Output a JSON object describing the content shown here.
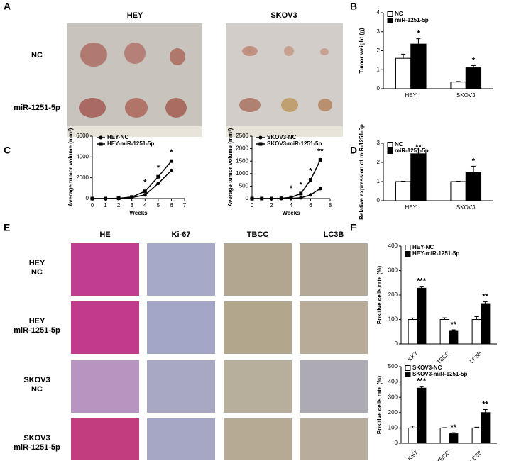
{
  "panels": {
    "letters": [
      "A",
      "B",
      "C",
      "D",
      "E",
      "F"
    ],
    "A": {
      "columns": [
        "HEY",
        "SKOV3"
      ],
      "rows": [
        "NC",
        "miR-1251-5p"
      ]
    },
    "E": {
      "columns": [
        "HE",
        "Ki-67",
        "TBCC",
        "LC3B"
      ],
      "rows": [
        [
          "HEY",
          "NC"
        ],
        [
          "HEY",
          "miR-1251-5p"
        ],
        [
          "SKOV3",
          "NC"
        ],
        [
          "SKOV3",
          "miR-1251-5p"
        ]
      ]
    }
  },
  "chart_data": [
    {
      "type": "bar",
      "y_label": "Tumor weight (g)",
      "categories": [
        "HEY",
        "SKOV3"
      ],
      "legend": "upper left",
      "series": [
        {
          "name": "NC",
          "color": "#ffffff",
          "values": [
            1.6,
            0.35
          ],
          "errors": [
            0.22,
            0.03
          ]
        },
        {
          "name": "miR-1251-5p",
          "color": "#000000",
          "values": [
            2.35,
            1.1
          ],
          "errors": [
            0.28,
            0.12
          ],
          "annotations": [
            "*",
            "*"
          ]
        }
      ],
      "ylim": [
        0,
        4
      ],
      "yticks": [
        0,
        1,
        2,
        3,
        4
      ]
    },
    {
      "type": "line",
      "x_label": "Weeks",
      "y_label": "Average tumor volume (mm³)",
      "legend": "upper left",
      "x": [
        0,
        1,
        2,
        3,
        4,
        5,
        6
      ],
      "series": [
        {
          "name": "HEY-NC",
          "color": "#000000",
          "marker": "circle",
          "values": [
            0,
            0,
            20,
            100,
            350,
            1450,
            2700
          ]
        },
        {
          "name": "HEY-miR-1251-5p",
          "color": "#000000",
          "marker": "square",
          "values": [
            0,
            0,
            30,
            150,
            700,
            2100,
            3600
          ]
        }
      ],
      "annotations": [
        {
          "x": 4,
          "text": "*"
        },
        {
          "x": 5,
          "text": "*"
        },
        {
          "x": 6,
          "text": "*"
        }
      ],
      "xlim": [
        0,
        7
      ],
      "xticks": [
        0,
        1,
        2,
        3,
        4,
        5,
        6,
        7
      ],
      "ylim": [
        0,
        6000
      ],
      "yticks": [
        0,
        2000,
        4000,
        6000
      ]
    },
    {
      "type": "line",
      "x_label": "Weeks",
      "y_label": "Average tumor volume (mm³)",
      "legend": "upper left",
      "x": [
        0,
        1,
        2,
        3,
        4,
        5,
        6,
        7
      ],
      "series": [
        {
          "name": "SKOV3-NC",
          "color": "#000000",
          "marker": "circle",
          "values": [
            0,
            0,
            0,
            0,
            10,
            30,
            150,
            400
          ]
        },
        {
          "name": "SKOV3-miR-1251-5p",
          "color": "#000000",
          "marker": "square",
          "values": [
            0,
            0,
            0,
            10,
            50,
            200,
            750,
            1550
          ]
        }
      ],
      "annotations": [
        {
          "x": 4,
          "text": "*"
        },
        {
          "x": 5,
          "text": "*"
        },
        {
          "x": 6,
          "text": "*"
        },
        {
          "x": 7,
          "text": "**"
        }
      ],
      "xlim": [
        0,
        8
      ],
      "xticks": [
        0,
        2,
        4,
        6,
        8
      ],
      "ylim": [
        0,
        2500
      ],
      "yticks": [
        0,
        500,
        1000,
        1500,
        2000,
        2500
      ]
    },
    {
      "type": "bar",
      "y_label": "Relative expression of miR-1251-5p",
      "categories": [
        "HEY",
        "SKOV3"
      ],
      "legend": "upper left",
      "series": [
        {
          "name": "NC",
          "color": "#ffffff",
          "values": [
            1,
            1
          ],
          "errors": [
            0.02,
            0.02
          ]
        },
        {
          "name": "miR-1251-5p",
          "color": "#000000",
          "values": [
            2.45,
            1.5
          ],
          "errors": [
            0.08,
            0.3
          ],
          "annotations": [
            "**",
            "*"
          ]
        }
      ],
      "ylim": [
        0,
        3
      ],
      "yticks": [
        0,
        1,
        2,
        3
      ]
    },
    {
      "type": "bar",
      "y_label": "Positive cells rate (%)",
      "categories": [
        "Ki67",
        "TBCC",
        "LC3B"
      ],
      "legend": "upper left",
      "series": [
        {
          "name": "HEY-NC",
          "color": "#ffffff",
          "values": [
            100,
            100,
            100
          ],
          "errors": [
            6,
            7,
            12
          ]
        },
        {
          "name": "HEY-miR-1251-5p",
          "color": "#000000",
          "values": [
            228,
            55,
            165
          ],
          "errors": [
            8,
            3,
            7
          ],
          "annotations": [
            "***",
            "**",
            "**"
          ]
        }
      ],
      "ylim": [
        0,
        400
      ],
      "yticks": [
        0,
        100,
        200,
        300,
        400
      ]
    },
    {
      "type": "bar",
      "y_label": "Positive cells rate (%)",
      "categories": [
        "Ki67",
        "TBCC",
        "LC3B"
      ],
      "legend": "upper left",
      "series": [
        {
          "name": "SKOV3-NC",
          "color": "#ffffff",
          "values": [
            100,
            100,
            100
          ],
          "errors": [
            12,
            2,
            5
          ]
        },
        {
          "name": "SKOV3-miR-1251-5p",
          "color": "#000000",
          "values": [
            360,
            62,
            200
          ],
          "errors": [
            12,
            7,
            20
          ],
          "annotations": [
            "***",
            "**",
            "**"
          ]
        }
      ],
      "ylim": [
        0,
        500
      ],
      "yticks": [
        0,
        100,
        200,
        300,
        400,
        500
      ]
    }
  ]
}
